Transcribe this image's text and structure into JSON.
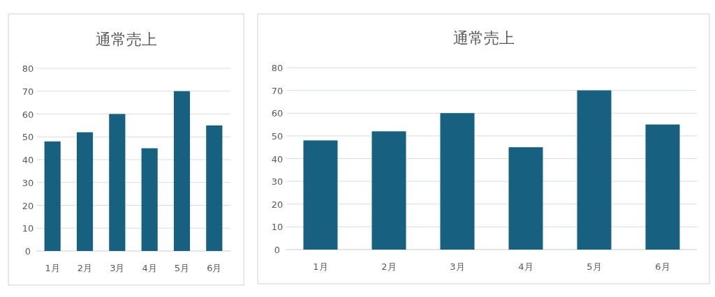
{
  "chart_data": [
    {
      "type": "bar",
      "title": "通常売上",
      "categories": [
        "1月",
        "2月",
        "3月",
        "4月",
        "5月",
        "6月"
      ],
      "values": [
        48,
        52,
        60,
        45,
        70,
        55
      ],
      "color": "#17607f",
      "ylim": [
        0,
        80
      ],
      "yticks": [
        0,
        10,
        20,
        30,
        40,
        50,
        60,
        70,
        80
      ],
      "grid": "y"
    },
    {
      "type": "bar",
      "title": "通常売上",
      "categories": [
        "1月",
        "2月",
        "3月",
        "4月",
        "5月",
        "6月"
      ],
      "values": [
        48,
        52,
        60,
        45,
        70,
        55
      ],
      "color": "#17607f",
      "ylim": [
        0,
        80
      ],
      "yticks": [
        0,
        10,
        20,
        30,
        40,
        50,
        60,
        70,
        80
      ],
      "grid": "y"
    }
  ]
}
